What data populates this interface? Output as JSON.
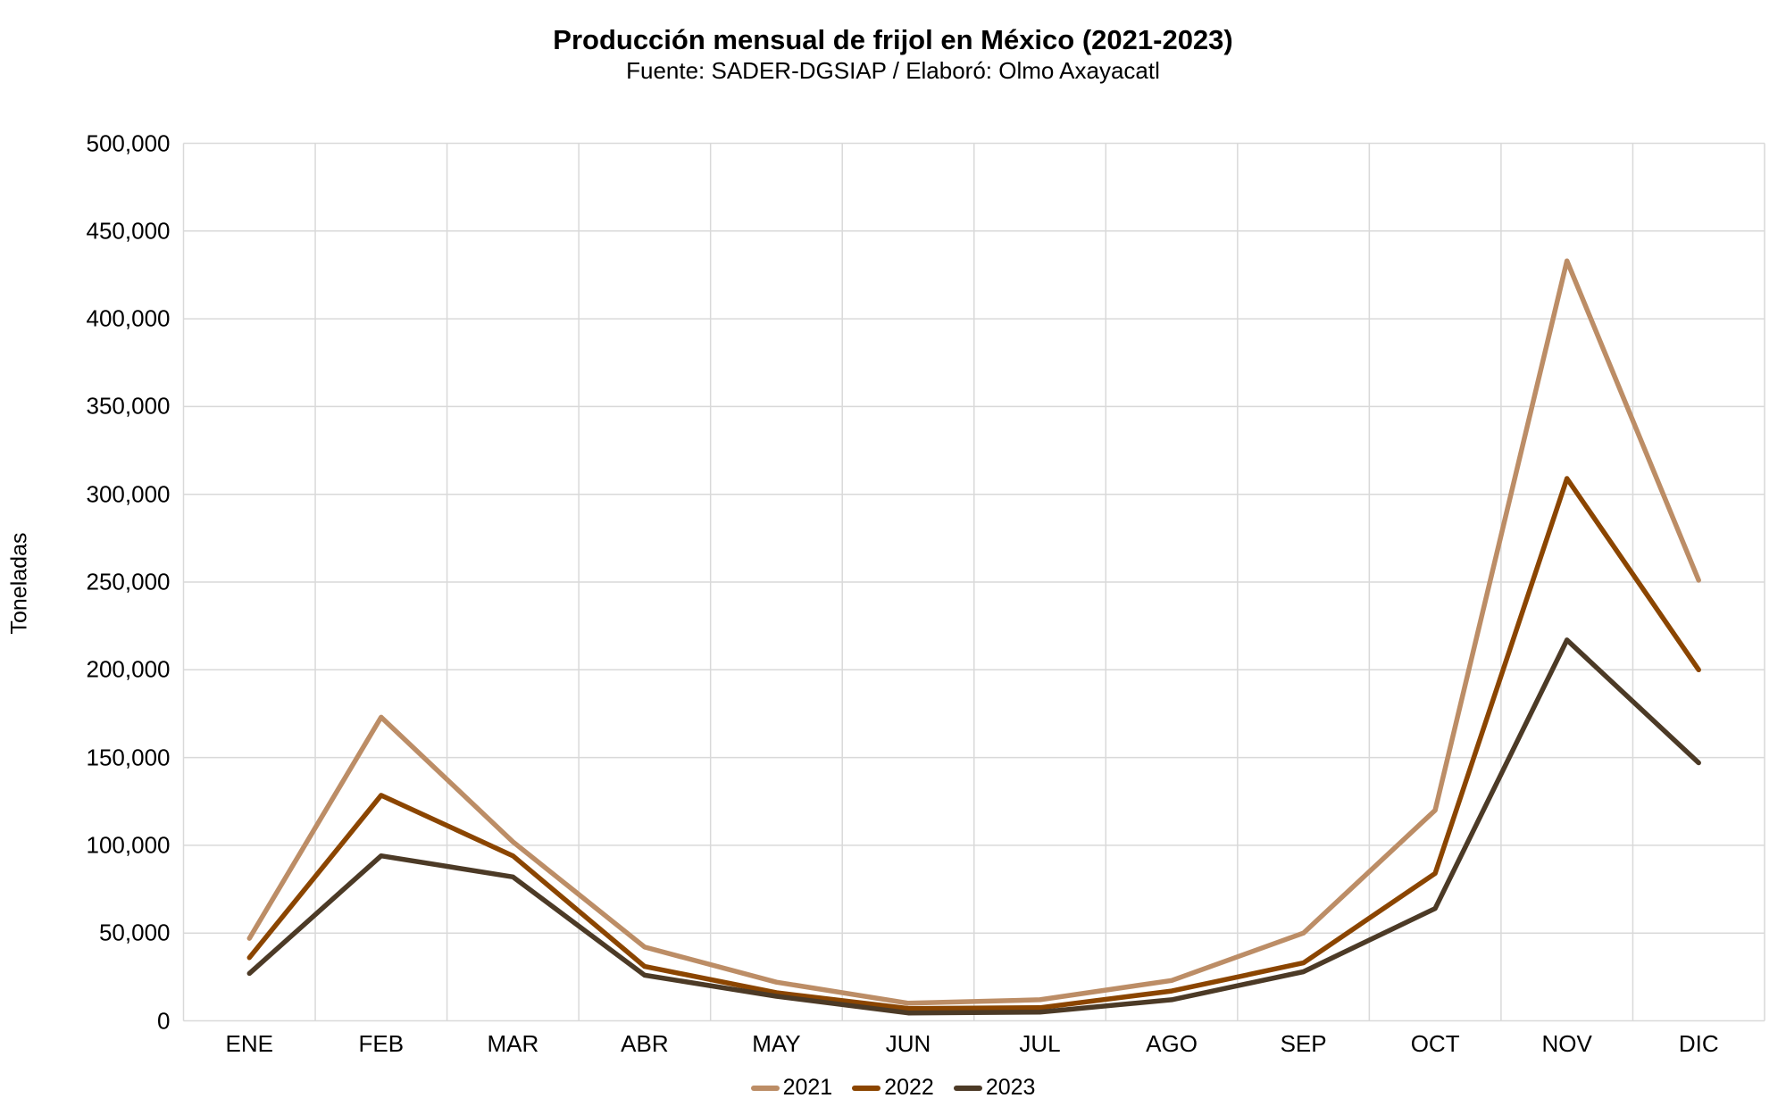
{
  "header": {
    "title": "Producción mensual de frijol en México (2021-2023)",
    "subtitle": "Fuente: SADER-DGSIAP / Elaboró: Olmo Axayacatl"
  },
  "chart_data": {
    "type": "line",
    "title": "Producción mensual de frijol en México (2021-2023)",
    "subtitle": "Fuente: SADER-DGSIAP / Elaboró: Olmo Axayacatl",
    "xlabel": "",
    "ylabel": "Toneladas",
    "categories": [
      "ENE",
      "FEB",
      "MAR",
      "ABR",
      "MAY",
      "JUN",
      "JUL",
      "AGO",
      "SEP",
      "OCT",
      "NOV",
      "DIC"
    ],
    "ylim": [
      0,
      500000
    ],
    "ytick_step": 50000,
    "ytick_labels": [
      "0",
      "50,000",
      "100,000",
      "150,000",
      "200,000",
      "250,000",
      "300,000",
      "350,000",
      "400,000",
      "450,000",
      "500,000"
    ],
    "grid": true,
    "legend_position": "bottom",
    "series": [
      {
        "name": "2021",
        "color": "#BC8D66",
        "values": [
          47000,
          173000,
          102000,
          42000,
          22000,
          10000,
          12000,
          23000,
          50000,
          120000,
          433000,
          251000
        ]
      },
      {
        "name": "2022",
        "color": "#8B4500",
        "values": [
          36000,
          128500,
          94000,
          31000,
          16000,
          7000,
          7500,
          17000,
          33000,
          84000,
          309000,
          200000
        ]
      },
      {
        "name": "2023",
        "color": "#4C3A26",
        "values": [
          27000,
          94000,
          82000,
          26000,
          14000,
          4500,
          5000,
          12000,
          28000,
          64000,
          217000,
          147000
        ]
      }
    ]
  },
  "colors": {
    "grid": "#D9D9D9",
    "text": "#000000",
    "background": "#FFFFFF"
  }
}
